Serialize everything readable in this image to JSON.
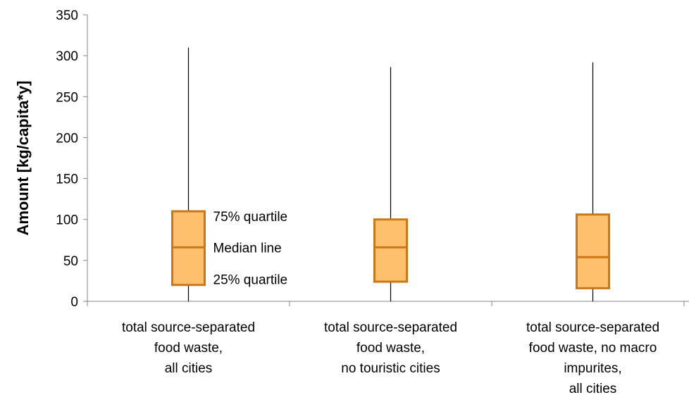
{
  "chart_data": {
    "type": "box",
    "title": "",
    "xlabel": "",
    "ylabel": "Amount [kg/capita*y]",
    "ylim": [
      0,
      350
    ],
    "yticks": [
      0,
      50,
      100,
      150,
      200,
      250,
      300,
      350
    ],
    "grid": false,
    "legend": "none",
    "box_fill": "#FFC06E",
    "box_stroke": "#CC7716",
    "whisker_color": "#000000",
    "categories": [
      [
        "total source-separated",
        "food waste,",
        "all cities"
      ],
      [
        "total source-separated",
        "food waste,",
        "no touristic cities"
      ],
      [
        "total source-separated",
        "food waste, no macro",
        "impurites,",
        "all cities"
      ]
    ],
    "boxes": [
      {
        "min": 0,
        "q1": 20,
        "median": 66,
        "q3": 110,
        "max": 310
      },
      {
        "min": 0,
        "q1": 24,
        "median": 66,
        "q3": 100,
        "max": 286
      },
      {
        "min": 0,
        "q1": 16,
        "median": 54,
        "q3": 106,
        "max": 292
      }
    ],
    "annotations": {
      "q3": "75% quartile",
      "median": "Median line",
      "q1": "25% quartile"
    }
  }
}
